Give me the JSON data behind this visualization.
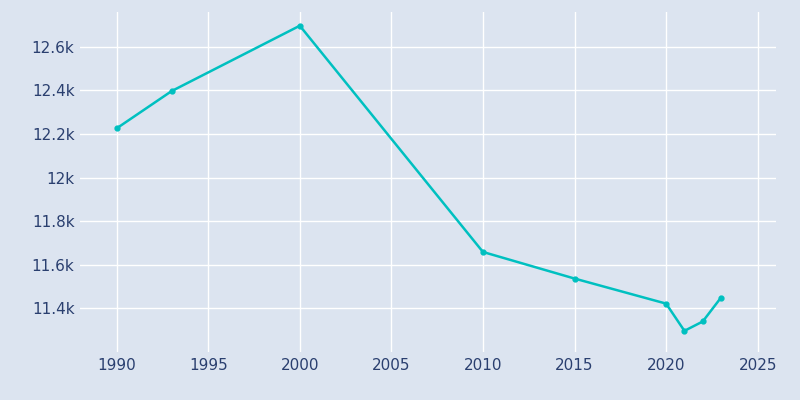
{
  "years": [
    1990,
    1993,
    2000,
    2010,
    2015,
    2020,
    2021,
    2022,
    2023
  ],
  "population": [
    12226,
    12397,
    12697,
    11659,
    11537,
    11422,
    11297,
    11340,
    11450
  ],
  "line_color": "#00C0C0",
  "bg_color": "#dce4f0",
  "plot_bg_color": "#dce4f0",
  "grid_color": "#ffffff",
  "tick_label_color": "#2a3f6f",
  "xlim": [
    1988,
    2026
  ],
  "ylim": [
    11200,
    12760
  ],
  "xticks": [
    1990,
    1995,
    2000,
    2005,
    2010,
    2015,
    2020,
    2025
  ],
  "ytick_values": [
    11400,
    11600,
    11800,
    12000,
    12200,
    12400,
    12600
  ],
  "ytick_labels": [
    "11.4k",
    "11.6k",
    "11.8k",
    "12k",
    "12.2k",
    "12.4k",
    "12.6k"
  ],
  "line_width": 1.8,
  "marker": "o",
  "marker_size": 3.5
}
